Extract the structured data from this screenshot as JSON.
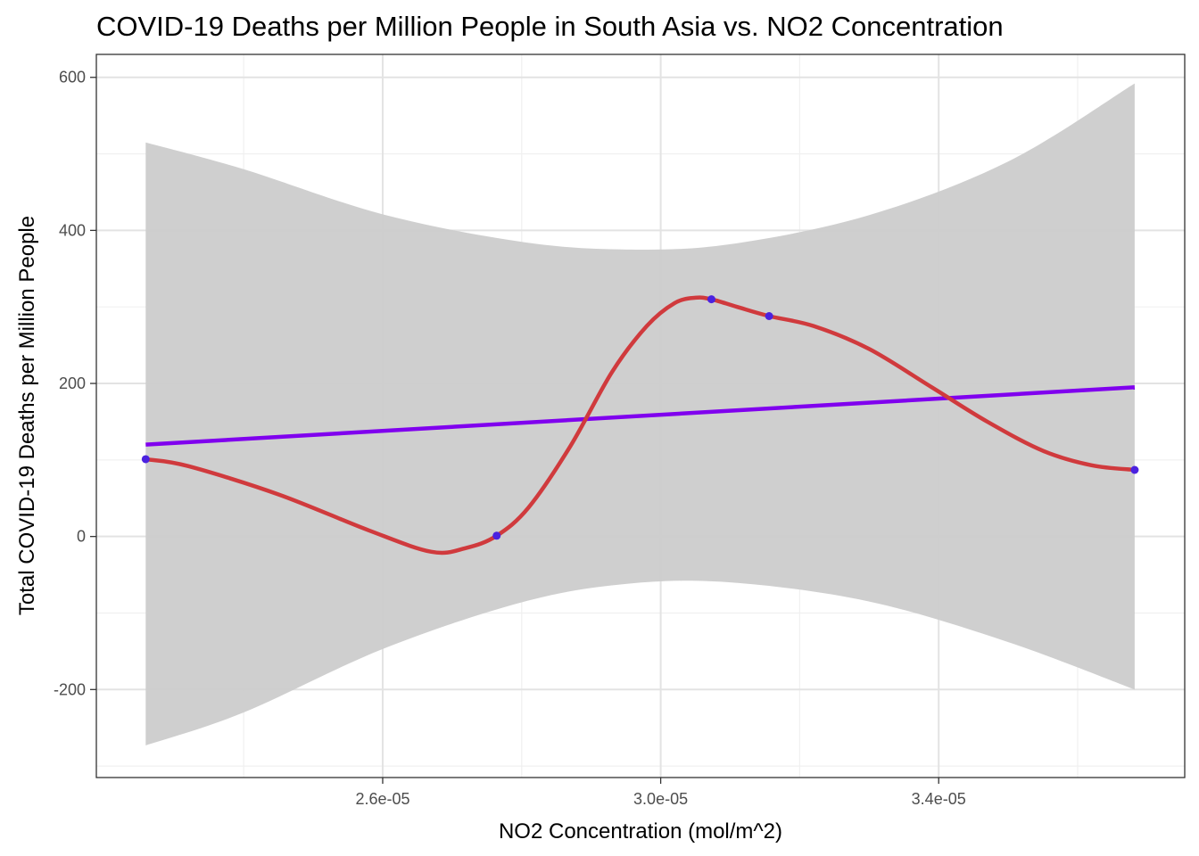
{
  "chart_data": {
    "type": "scatter",
    "title": "COVID-19 Deaths per Million People in South Asia vs. NO2 Concentration",
    "xlabel": "NO2 Concentration (mol/m^2)",
    "ylabel": "Total COVID-19 Deaths per Million People",
    "xlim": [
      2.188e-05,
      3.754e-05
    ],
    "ylim": [
      -315,
      630
    ],
    "x_ticks": [
      2.6e-05,
      3e-05,
      3.4e-05
    ],
    "x_tick_labels": [
      "2.6e-05",
      "3.0e-05",
      "3.4e-05"
    ],
    "y_ticks": [
      -200,
      0,
      200,
      400,
      600
    ],
    "y_tick_labels": [
      "-200",
      "0",
      "200",
      "400",
      "600"
    ],
    "grid": true,
    "points": {
      "x": [
        2.259e-05,
        2.764e-05,
        3.073e-05,
        3.156e-05,
        3.682e-05
      ],
      "y": [
        101,
        1,
        310,
        288,
        87
      ],
      "color": "#4b22e0"
    },
    "linear_fit": {
      "x": [
        2.259e-05,
        3.682e-05
      ],
      "y": [
        120,
        195
      ],
      "color": "#8000ee"
    },
    "smooth_curve": {
      "x": [
        2.259e-05,
        2.32e-05,
        2.45e-05,
        2.58e-05,
        2.67e-05,
        2.72e-05,
        2.764e-05,
        2.81e-05,
        2.87e-05,
        2.93e-05,
        2.98e-05,
        3.02e-05,
        3.05e-05,
        3.073e-05,
        3.11e-05,
        3.156e-05,
        3.22e-05,
        3.3e-05,
        3.39e-05,
        3.47e-05,
        3.55e-05,
        3.62e-05,
        3.682e-05
      ],
      "y": [
        101,
        92,
        55,
        8,
        -20,
        -15,
        1,
        38,
        118,
        215,
        275,
        305,
        312,
        310,
        300,
        288,
        275,
        245,
        195,
        150,
        112,
        93,
        87
      ],
      "color": "#d03a3d"
    },
    "confidence_band": {
      "x": [
        2.259e-05,
        2.4e-05,
        2.6e-05,
        2.8e-05,
        2.95e-05,
        3.1e-05,
        3.3e-05,
        3.5e-05,
        3.682e-05
      ],
      "upper": [
        515,
        480,
        421,
        385,
        375,
        382,
        420,
        490,
        592
      ],
      "lower": [
        -273,
        -230,
        -147,
        -86,
        -62,
        -60,
        -85,
        -138,
        -200
      ],
      "color": "#cccccc"
    }
  }
}
